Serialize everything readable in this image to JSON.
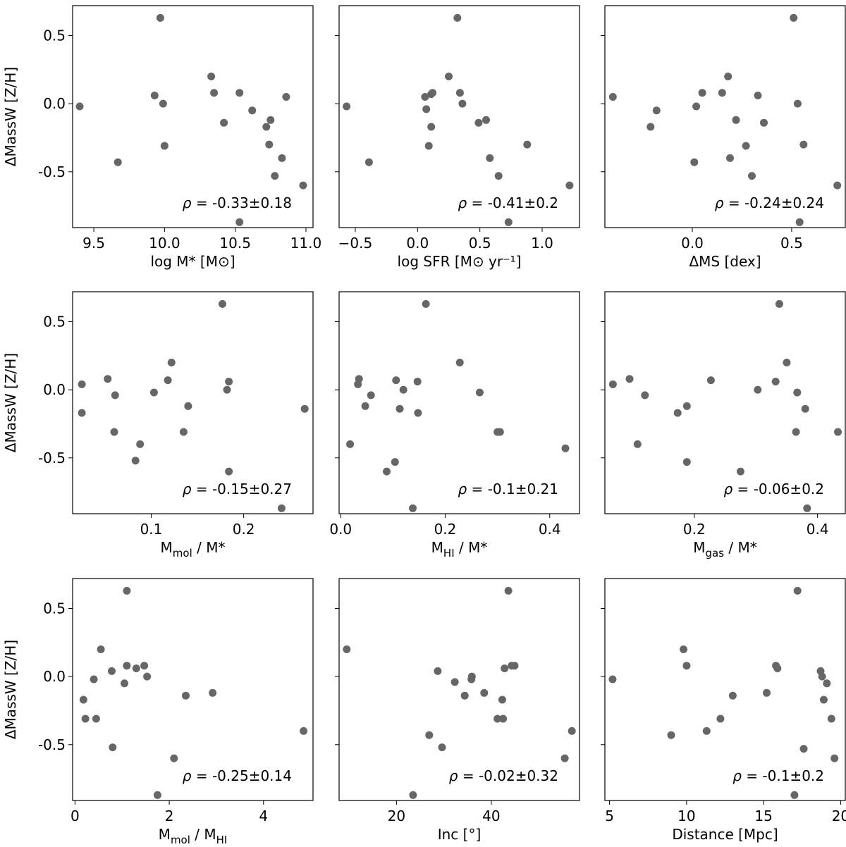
{
  "shared": {
    "ylabel": "ΔMassW [Z/H]",
    "yticks": [
      "0.5",
      "0.0",
      "-0.5"
    ],
    "point_color": "#666666",
    "rho_prefix": "ρ = "
  },
  "chart_data": [
    {
      "type": "scatter",
      "id": "p1",
      "xlabel": "log M* [M⊙]",
      "xlim": [
        9.35,
        11.05
      ],
      "ylim": [
        -0.91,
        0.72
      ],
      "xticks": [
        {
          "v": 9.5,
          "label": "9.5"
        },
        {
          "v": 10.0,
          "label": "10.0"
        },
        {
          "v": 10.5,
          "label": "10.5"
        },
        {
          "v": 11.0,
          "label": "11.0"
        }
      ],
      "rho": "-0.33±0.18",
      "points": [
        [
          9.4,
          -0.02
        ],
        [
          9.67,
          -0.43
        ],
        [
          9.93,
          0.06
        ],
        [
          9.97,
          0.63
        ],
        [
          9.99,
          0.0
        ],
        [
          10.0,
          -0.31
        ],
        [
          10.33,
          0.2
        ],
        [
          10.35,
          0.08
        ],
        [
          10.42,
          -0.14
        ],
        [
          10.53,
          0.08
        ],
        [
          10.53,
          -0.87
        ],
        [
          10.62,
          -0.05
        ],
        [
          10.72,
          -0.17
        ],
        [
          10.74,
          -0.3
        ],
        [
          10.75,
          -0.12
        ],
        [
          10.78,
          -0.53
        ],
        [
          10.83,
          -0.4
        ],
        [
          10.86,
          0.05
        ],
        [
          10.98,
          -0.6
        ]
      ]
    },
    {
      "type": "scatter",
      "id": "p2",
      "xlabel": "log SFR [M⊙ yr⁻¹]",
      "xlim": [
        -0.63,
        1.3
      ],
      "ylim": [
        -0.91,
        0.72
      ],
      "xticks": [
        {
          "v": -0.5,
          "label": "−0.5"
        },
        {
          "v": 0.0,
          "label": "0.0"
        },
        {
          "v": 0.5,
          "label": "0.5"
        },
        {
          "v": 1.0,
          "label": "1.0"
        }
      ],
      "rho": "-0.41±0.2",
      "points": [
        [
          -0.57,
          -0.02
        ],
        [
          -0.39,
          -0.43
        ],
        [
          0.06,
          0.05
        ],
        [
          0.07,
          -0.04
        ],
        [
          0.09,
          -0.31
        ],
        [
          0.11,
          0.07
        ],
        [
          0.11,
          -0.17
        ],
        [
          0.12,
          0.08
        ],
        [
          0.25,
          0.2
        ],
        [
          0.32,
          0.63
        ],
        [
          0.34,
          0.08
        ],
        [
          0.36,
          0.0
        ],
        [
          0.49,
          -0.14
        ],
        [
          0.55,
          -0.12
        ],
        [
          0.58,
          -0.4
        ],
        [
          0.65,
          -0.53
        ],
        [
          0.73,
          -0.87
        ],
        [
          0.88,
          -0.3
        ],
        [
          1.22,
          -0.6
        ]
      ]
    },
    {
      "type": "scatter",
      "id": "p3",
      "xlabel": "ΔMS [dex]",
      "xlim": [
        -0.44,
        0.77
      ],
      "ylim": [
        -0.91,
        0.72
      ],
      "xticks": [
        {
          "v": 0.0,
          "label": "0.0"
        },
        {
          "v": 0.5,
          "label": "0.5"
        }
      ],
      "rho": "-0.24±0.24",
      "points": [
        [
          -0.4,
          0.05
        ],
        [
          -0.21,
          -0.17
        ],
        [
          -0.18,
          -0.05
        ],
        [
          0.01,
          -0.43
        ],
        [
          0.02,
          -0.02
        ],
        [
          0.05,
          0.08
        ],
        [
          0.15,
          0.08
        ],
        [
          0.18,
          0.2
        ],
        [
          0.19,
          -0.4
        ],
        [
          0.22,
          -0.12
        ],
        [
          0.27,
          -0.31
        ],
        [
          0.3,
          -0.53
        ],
        [
          0.33,
          0.06
        ],
        [
          0.36,
          -0.14
        ],
        [
          0.51,
          0.63
        ],
        [
          0.53,
          0.0
        ],
        [
          0.54,
          -0.87
        ],
        [
          0.56,
          -0.3
        ],
        [
          0.73,
          -0.6
        ]
      ]
    },
    {
      "type": "scatter",
      "id": "p4",
      "xlabel": "M_mol / M*",
      "xlim": [
        0.015,
        0.275
      ],
      "ylim": [
        -0.91,
        0.72
      ],
      "xticks": [
        {
          "v": 0.1,
          "label": "0.1"
        },
        {
          "v": 0.2,
          "label": "0.2"
        }
      ],
      "rho": "-0.15±0.27",
      "points": [
        [
          0.025,
          0.04
        ],
        [
          0.025,
          -0.17
        ],
        [
          0.053,
          0.08
        ],
        [
          0.06,
          -0.31
        ],
        [
          0.061,
          -0.04
        ],
        [
          0.083,
          -0.52
        ],
        [
          0.088,
          -0.4
        ],
        [
          0.103,
          -0.02
        ],
        [
          0.118,
          0.07
        ],
        [
          0.122,
          0.2
        ],
        [
          0.135,
          -0.31
        ],
        [
          0.14,
          -0.12
        ],
        [
          0.177,
          0.63
        ],
        [
          0.182,
          0.0
        ],
        [
          0.184,
          0.06
        ],
        [
          0.184,
          -0.6
        ],
        [
          0.241,
          -0.87
        ],
        [
          0.266,
          -0.14
        ]
      ]
    },
    {
      "type": "scatter",
      "id": "p5",
      "xlabel": "M_HI / M*",
      "xlim": [
        -0.003,
        0.457
      ],
      "ylim": [
        -0.91,
        0.72
      ],
      "xticks": [
        {
          "v": 0.0,
          "label": "0.0"
        },
        {
          "v": 0.2,
          "label": "0.2"
        },
        {
          "v": 0.4,
          "label": "0.4"
        }
      ],
      "rho": "-0.1±0.21",
      "points": [
        [
          0.018,
          -0.4
        ],
        [
          0.033,
          0.04
        ],
        [
          0.035,
          0.08
        ],
        [
          0.047,
          -0.12
        ],
        [
          0.058,
          -0.04
        ],
        [
          0.088,
          -0.6
        ],
        [
          0.104,
          -0.53
        ],
        [
          0.106,
          0.07
        ],
        [
          0.113,
          -0.14
        ],
        [
          0.12,
          0.0
        ],
        [
          0.138,
          -0.87
        ],
        [
          0.147,
          0.06
        ],
        [
          0.148,
          -0.17
        ],
        [
          0.163,
          0.63
        ],
        [
          0.228,
          0.2
        ],
        [
          0.266,
          -0.02
        ],
        [
          0.3,
          -0.31
        ],
        [
          0.305,
          -0.31
        ],
        [
          0.43,
          -0.43
        ]
      ]
    },
    {
      "type": "scatter",
      "id": "p6",
      "xlabel": "M_gas / M*",
      "xlim": [
        0.055,
        0.445
      ],
      "ylim": [
        -0.91,
        0.72
      ],
      "xticks": [
        {
          "v": 0.2,
          "label": "0.2"
        },
        {
          "v": 0.4,
          "label": "0.4"
        }
      ],
      "rho": "-0.06±0.2",
      "points": [
        [
          0.068,
          0.04
        ],
        [
          0.095,
          0.08
        ],
        [
          0.108,
          -0.4
        ],
        [
          0.12,
          -0.04
        ],
        [
          0.173,
          -0.17
        ],
        [
          0.188,
          -0.12
        ],
        [
          0.188,
          -0.53
        ],
        [
          0.227,
          0.07
        ],
        [
          0.275,
          -0.6
        ],
        [
          0.303,
          0.0
        ],
        [
          0.332,
          0.06
        ],
        [
          0.338,
          0.63
        ],
        [
          0.35,
          0.2
        ],
        [
          0.365,
          -0.31
        ],
        [
          0.367,
          -0.02
        ],
        [
          0.38,
          -0.14
        ],
        [
          0.383,
          -0.87
        ],
        [
          0.433,
          -0.31
        ]
      ]
    },
    {
      "type": "scatter",
      "id": "p7",
      "xlabel": "M_mol / M_HI",
      "xlim": [
        -0.05,
        5.05
      ],
      "ylim": [
        -0.91,
        0.72
      ],
      "xticks": [
        {
          "v": 0,
          "label": "0"
        },
        {
          "v": 2,
          "label": "2"
        },
        {
          "v": 4,
          "label": "4"
        }
      ],
      "rho": "-0.25±0.14",
      "points": [
        [
          0.18,
          -0.17
        ],
        [
          0.22,
          -0.31
        ],
        [
          0.4,
          -0.02
        ],
        [
          0.45,
          -0.31
        ],
        [
          0.55,
          0.2
        ],
        [
          0.78,
          0.04
        ],
        [
          0.8,
          -0.52
        ],
        [
          1.05,
          -0.05
        ],
        [
          1.1,
          0.08
        ],
        [
          1.1,
          0.63
        ],
        [
          1.3,
          0.06
        ],
        [
          1.47,
          0.08
        ],
        [
          1.53,
          0.0
        ],
        [
          1.75,
          -0.87
        ],
        [
          2.1,
          -0.6
        ],
        [
          2.35,
          -0.14
        ],
        [
          2.92,
          -0.12
        ],
        [
          4.85,
          -0.4
        ]
      ]
    },
    {
      "type": "scatter",
      "id": "p8",
      "xlabel": "Inc [°]",
      "xlim": [
        7.9,
        58.6
      ],
      "ylim": [
        -0.91,
        0.72
      ],
      "xticks": [
        {
          "v": 20,
          "label": "20"
        },
        {
          "v": 40,
          "label": "40"
        }
      ],
      "rho": "-0.02±0.32",
      "points": [
        [
          9.5,
          0.2
        ],
        [
          23.5,
          -0.87
        ],
        [
          26.9,
          -0.43
        ],
        [
          28.7,
          0.04
        ],
        [
          29.6,
          -0.52
        ],
        [
          32.3,
          -0.04
        ],
        [
          34.4,
          -0.14
        ],
        [
          35.8,
          -0.02
        ],
        [
          35.9,
          0.0
        ],
        [
          38.5,
          -0.12
        ],
        [
          41.3,
          -0.31
        ],
        [
          42.3,
          -0.17
        ],
        [
          42.5,
          -0.31
        ],
        [
          42.8,
          0.06
        ],
        [
          43.6,
          0.63
        ],
        [
          44.3,
          0.08
        ],
        [
          44.9,
          0.08
        ],
        [
          55.5,
          -0.6
        ],
        [
          57.0,
          -0.4
        ]
      ]
    },
    {
      "type": "scatter",
      "id": "p9",
      "xlabel": "Distance [Mpc]",
      "xlim": [
        4.7,
        20.3
      ],
      "ylim": [
        -0.91,
        0.72
      ],
      "xticks": [
        {
          "v": 5,
          "label": "5"
        },
        {
          "v": 10,
          "label": "10"
        },
        {
          "v": 15,
          "label": "15"
        },
        {
          "v": 20,
          "label": "20"
        }
      ],
      "rho": "-0.1±0.2",
      "points": [
        [
          5.2,
          -0.02
        ],
        [
          9.0,
          -0.43
        ],
        [
          9.8,
          0.2
        ],
        [
          10.0,
          0.08
        ],
        [
          11.3,
          -0.4
        ],
        [
          12.2,
          -0.31
        ],
        [
          13.0,
          -0.14
        ],
        [
          15.2,
          -0.12
        ],
        [
          15.8,
          0.08
        ],
        [
          15.9,
          0.06
        ],
        [
          17.0,
          -0.87
        ],
        [
          17.2,
          0.63
        ],
        [
          17.6,
          -0.53
        ],
        [
          18.7,
          0.04
        ],
        [
          18.8,
          0.0
        ],
        [
          18.9,
          -0.17
        ],
        [
          19.1,
          -0.05
        ],
        [
          19.4,
          -0.31
        ],
        [
          19.6,
          -0.6
        ]
      ]
    }
  ]
}
